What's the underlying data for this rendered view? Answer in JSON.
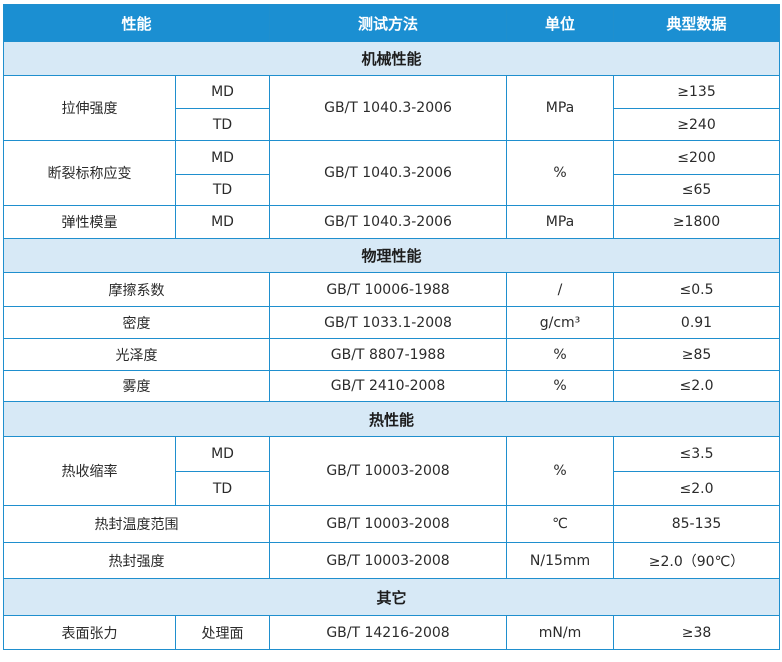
{
  "header": {
    "property": "性能",
    "method": "测试方法",
    "unit": "单位",
    "typical": "典型数据"
  },
  "sections": [
    {
      "title": "机械性能",
      "rows": [
        {
          "property": "拉伸强度",
          "subs": [
            {
              "dir": "MD",
              "value": "≥135"
            },
            {
              "dir": "TD",
              "value": "≥240"
            }
          ],
          "method": "GB/T 1040.3-2006",
          "unit": "MPa"
        },
        {
          "property": "断裂标称应变",
          "subs": [
            {
              "dir": "MD",
              "value": "≤200"
            },
            {
              "dir": "TD",
              "value": "≤65"
            }
          ],
          "method": "GB/T 1040.3-2006",
          "unit": "%"
        },
        {
          "property": "弹性模量",
          "dir": "MD",
          "method": "GB/T 1040.3-2006",
          "unit": "MPa",
          "value": "≥1800"
        }
      ]
    },
    {
      "title": "物理性能",
      "rows": [
        {
          "property": "摩擦系数",
          "method": "GB/T 10006-1988",
          "unit": "/",
          "value": "≤0.5"
        },
        {
          "property": "密度",
          "method": "GB/T 1033.1-2008",
          "unit": "g/cm³",
          "value": "0.91"
        },
        {
          "property": "光泽度",
          "method": "GB/T 8807-1988",
          "unit": "%",
          "value": "≥85"
        },
        {
          "property": "雾度",
          "method": "GB/T 2410-2008",
          "unit": "%",
          "value": "≤2.0"
        }
      ]
    },
    {
      "title": "热性能",
      "rows": [
        {
          "property": "热收缩率",
          "subs": [
            {
              "dir": "MD",
              "value": "≤3.5"
            },
            {
              "dir": "TD",
              "value": "≤2.0"
            }
          ],
          "method": "GB/T 10003-2008",
          "unit": "%"
        },
        {
          "property": "热封温度范围",
          "method": "GB/T 10003-2008",
          "unit": "℃",
          "value": "85-135"
        },
        {
          "property": "热封强度",
          "method": "GB/T 10003-2008",
          "unit": "N/15mm",
          "value": "≥2.0（90℃）"
        }
      ]
    },
    {
      "title": "其它",
      "rows": [
        {
          "property": "表面张力",
          "dir": "处理面",
          "method": "GB/T 14216-2008",
          "unit": "mN/m",
          "value": "≥38"
        }
      ]
    }
  ]
}
